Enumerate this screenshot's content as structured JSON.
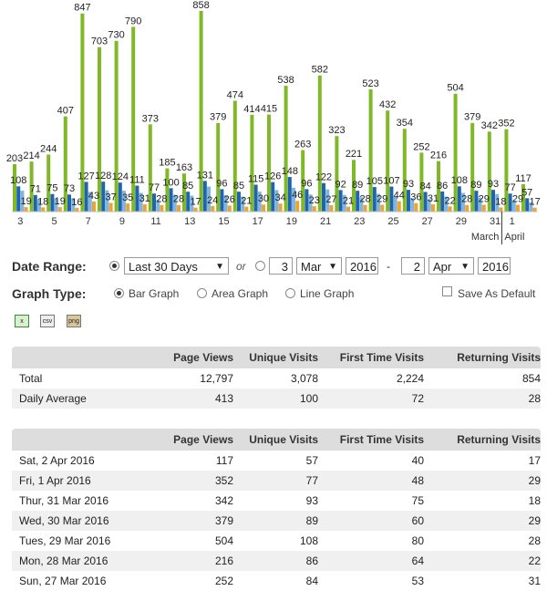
{
  "chart_data": {
    "type": "bar",
    "categories": [
      "3",
      null,
      "5",
      null,
      "7",
      null,
      "9",
      null,
      "11",
      null,
      "13",
      null,
      "15",
      null,
      "17",
      null,
      "19",
      null,
      "21",
      null,
      "23",
      null,
      "25",
      null,
      "27",
      null,
      "29",
      null,
      "31",
      "1",
      null
    ],
    "month_labels": [
      "March",
      "April"
    ],
    "series": [
      {
        "name": "Page Views",
        "color": "#80b927",
        "show_labels": true,
        "values": [
          203,
          214,
          244,
          407,
          847,
          703,
          730,
          790,
          373,
          185,
          163,
          858,
          379,
          474,
          414,
          415,
          538,
          263,
          582,
          323,
          221,
          523,
          432,
          354,
          252,
          216,
          504,
          379,
          342,
          352,
          117
        ]
      },
      {
        "name": "Unique Visits",
        "color": "#1f64ad",
        "show_labels": true,
        "values": [
          108,
          71,
          75,
          73,
          127,
          128,
          124,
          111,
          77,
          100,
          85,
          131,
          96,
          85,
          115,
          126,
          148,
          96,
          122,
          92,
          89,
          105,
          107,
          93,
          84,
          86,
          108,
          89,
          93,
          77,
          57
        ]
      },
      {
        "name": "First Time Visits",
        "color": "#7fb6df",
        "show_labels": false,
        "values": [
          89,
          53,
          56,
          57,
          84,
          91,
          89,
          80,
          49,
          72,
          68,
          107,
          70,
          64,
          85,
          92,
          102,
          73,
          95,
          71,
          61,
          76,
          63,
          57,
          53,
          64,
          80,
          60,
          75,
          48,
          40
        ]
      },
      {
        "name": "Returning Visits",
        "color": "#f0a22e",
        "show_labels": true,
        "values": [
          19,
          18,
          19,
          16,
          43,
          37,
          35,
          31,
          28,
          28,
          17,
          24,
          26,
          21,
          30,
          34,
          46,
          23,
          27,
          21,
          28,
          29,
          44,
          36,
          31,
          22,
          28,
          29,
          18,
          29,
          17
        ]
      }
    ]
  },
  "form": {
    "date_range_label": "Date Range:",
    "preset": "Last 30 Days",
    "or": "or",
    "from_day": "3",
    "from_month": "Mar",
    "from_year": "2016",
    "dash": "-",
    "to_day": "2",
    "to_month": "Apr",
    "to_year": "2016",
    "graph_type_label": "Graph Type:",
    "graph_options": [
      "Bar Graph",
      "Area Graph",
      "Line Graph"
    ],
    "save_default": "Save As Default",
    "exports": [
      "csv",
      "png"
    ]
  },
  "summary_table": {
    "columns": [
      "Page Views",
      "Unique Visits",
      "First Time Visits",
      "Returning Visits"
    ],
    "rows": [
      [
        "Total",
        "12,797",
        "3,078",
        "2,224",
        "854"
      ],
      [
        "Daily Average",
        "413",
        "100",
        "72",
        "28"
      ]
    ]
  },
  "daily_table": {
    "columns": [
      "Page Views",
      "Unique Visits",
      "First Time Visits",
      "Returning Visits"
    ],
    "rows": [
      [
        "Sat, 2 Apr 2016",
        "117",
        "57",
        "40",
        "17"
      ],
      [
        "Fri, 1 Apr 2016",
        "352",
        "77",
        "48",
        "29"
      ],
      [
        "Thur, 31 Mar 2016",
        "342",
        "93",
        "75",
        "18"
      ],
      [
        "Wed, 30 Mar 2016",
        "379",
        "89",
        "60",
        "29"
      ],
      [
        "Tues, 29 Mar 2016",
        "504",
        "108",
        "80",
        "28"
      ],
      [
        "Mon, 28 Mar 2016",
        "216",
        "86",
        "64",
        "22"
      ],
      [
        "Sun, 27 Mar 2016",
        "252",
        "84",
        "53",
        "31"
      ]
    ]
  }
}
